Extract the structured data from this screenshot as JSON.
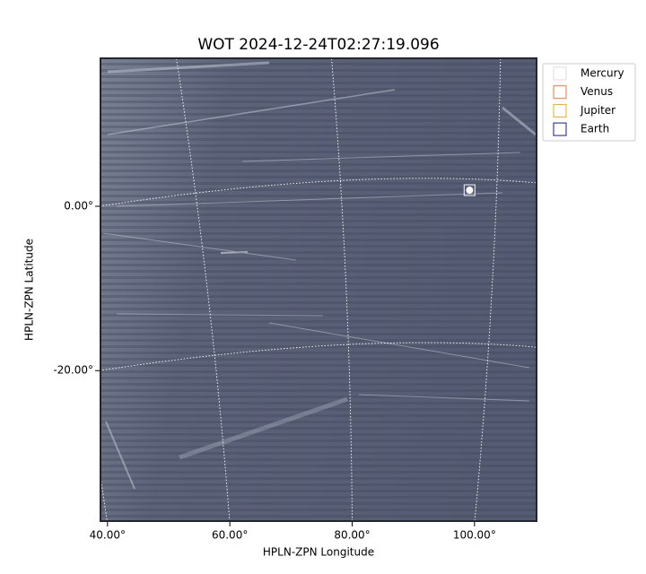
{
  "chart_data": {
    "type": "image",
    "title": "WOT 2024-12-24T02:27:19.096",
    "xlabel": "HPLN-ZPN Longitude",
    "ylabel": "HPLN-ZPN Latitude",
    "xlim": [
      39,
      110
    ],
    "ylim": [
      -38.2,
      17.9
    ],
    "xticks": [
      {
        "value": 40,
        "label": "40.00°"
      },
      {
        "value": 60,
        "label": "60.00°"
      },
      {
        "value": 80,
        "label": "80.00°"
      },
      {
        "value": 100,
        "label": "100.00°"
      }
    ],
    "yticks": [
      {
        "value": 0,
        "label": "0.00°"
      },
      {
        "value": -20,
        "label": "-20.00°"
      }
    ],
    "grid": true,
    "legend": "upper right",
    "series": [
      {
        "name": "Mercury",
        "color": "#dddddd",
        "x": [
          99.2
        ],
        "y": [
          1.96
        ]
      },
      {
        "name": "Venus",
        "color": "#e07b39",
        "x": [],
        "y": []
      },
      {
        "name": "Jupiter",
        "color": "#e0b020",
        "x": [],
        "y": []
      },
      {
        "name": "Earth",
        "color": "#1a1a80",
        "x": [],
        "y": []
      }
    ]
  }
}
